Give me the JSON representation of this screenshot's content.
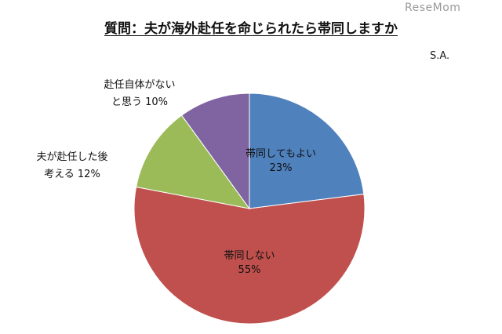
{
  "header": {
    "title": "質問：夫が海外赴任を命じられたら帯同しますか",
    "note": "S.A.",
    "watermark": "ReseMom"
  },
  "chart_data": {
    "type": "pie",
    "title": "質問：夫が海外赴任を命じられたら帯同しますか",
    "start_angle_deg": 0,
    "direction": "clockwise",
    "slices": [
      {
        "label": "帯同してもよい",
        "value": 23,
        "value_label": "23%",
        "color": "#4f81bd"
      },
      {
        "label": "帯同しない",
        "value": 55,
        "value_label": "55%",
        "color": "#c0504d"
      },
      {
        "label": "夫が赴任した後\n考える",
        "value": 12,
        "value_label": "12%",
        "color": "#9bbb59"
      },
      {
        "label": "赴任自体がない\nと思う",
        "value": 10,
        "value_label": "10%",
        "color": "#8064a2"
      }
    ]
  }
}
